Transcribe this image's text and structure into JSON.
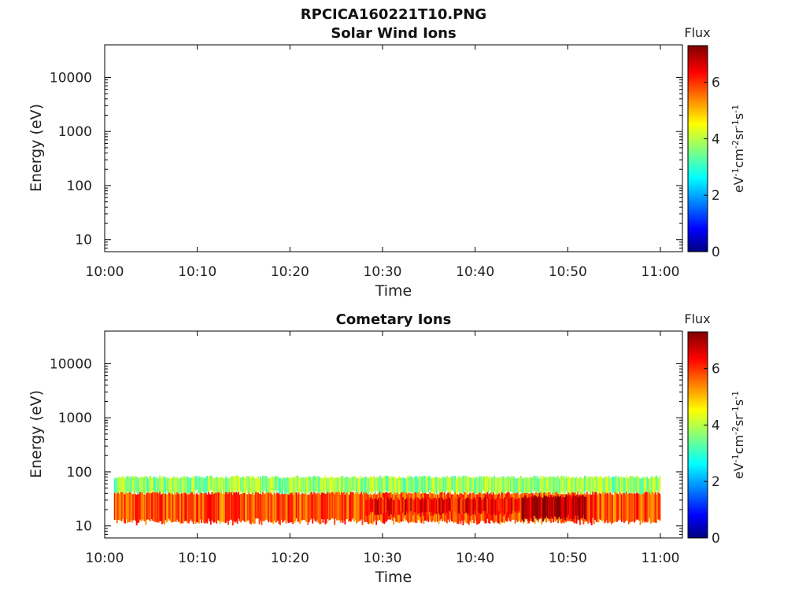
{
  "figure_title": "RPCICA160221T10.PNG",
  "chart_data": [
    {
      "type": "heatmap",
      "title": "Solar Wind Ions",
      "xlabel": "Time",
      "ylabel": "Energy (eV)",
      "x_ticks": [
        "10:00",
        "10:10",
        "10:20",
        "10:30",
        "10:40",
        "10:50",
        "11:00"
      ],
      "y_ticks": [
        "10",
        "100",
        "1000",
        "10000"
      ],
      "y_scale": "log",
      "x_range": [
        "10:00",
        "11:02"
      ],
      "y_range": [
        6,
        40000
      ],
      "colorbar": {
        "title": "Flux",
        "label": "eV-1cm-2sr-1s-1",
        "ticks": [
          "0",
          "2",
          "4",
          "6"
        ],
        "range": [
          0,
          7.3
        ]
      },
      "bands": []
    },
    {
      "type": "heatmap",
      "title": "Cometary Ions",
      "xlabel": "Time",
      "ylabel": "Energy (eV)",
      "x_ticks": [
        "10:00",
        "10:10",
        "10:20",
        "10:30",
        "10:40",
        "10:50",
        "11:00"
      ],
      "y_ticks": [
        "10",
        "100",
        "1000",
        "10000"
      ],
      "y_scale": "log",
      "x_range": [
        "10:00",
        "11:02"
      ],
      "y_range": [
        6,
        40000
      ],
      "colorbar": {
        "title": "Flux",
        "label": "eV-1cm-2sr-1s-1",
        "ticks": [
          "0",
          "2",
          "4",
          "6"
        ],
        "range": [
          0,
          7.3
        ]
      },
      "bands": [
        {
          "time_start": "10:01",
          "time_end": "11:00",
          "energy_low": 40,
          "energy_high": 80,
          "flux": 3.8
        },
        {
          "time_start": "10:01",
          "time_end": "11:00",
          "energy_low": 12,
          "energy_high": 40,
          "flux": 5.8
        },
        {
          "time_start": "10:28",
          "time_end": "10:52",
          "energy_low": 17,
          "energy_high": 32,
          "flux": 6.4
        },
        {
          "time_start": "10:45",
          "time_end": "10:52",
          "energy_low": 14,
          "energy_high": 35,
          "flux": 6.9
        }
      ]
    }
  ]
}
